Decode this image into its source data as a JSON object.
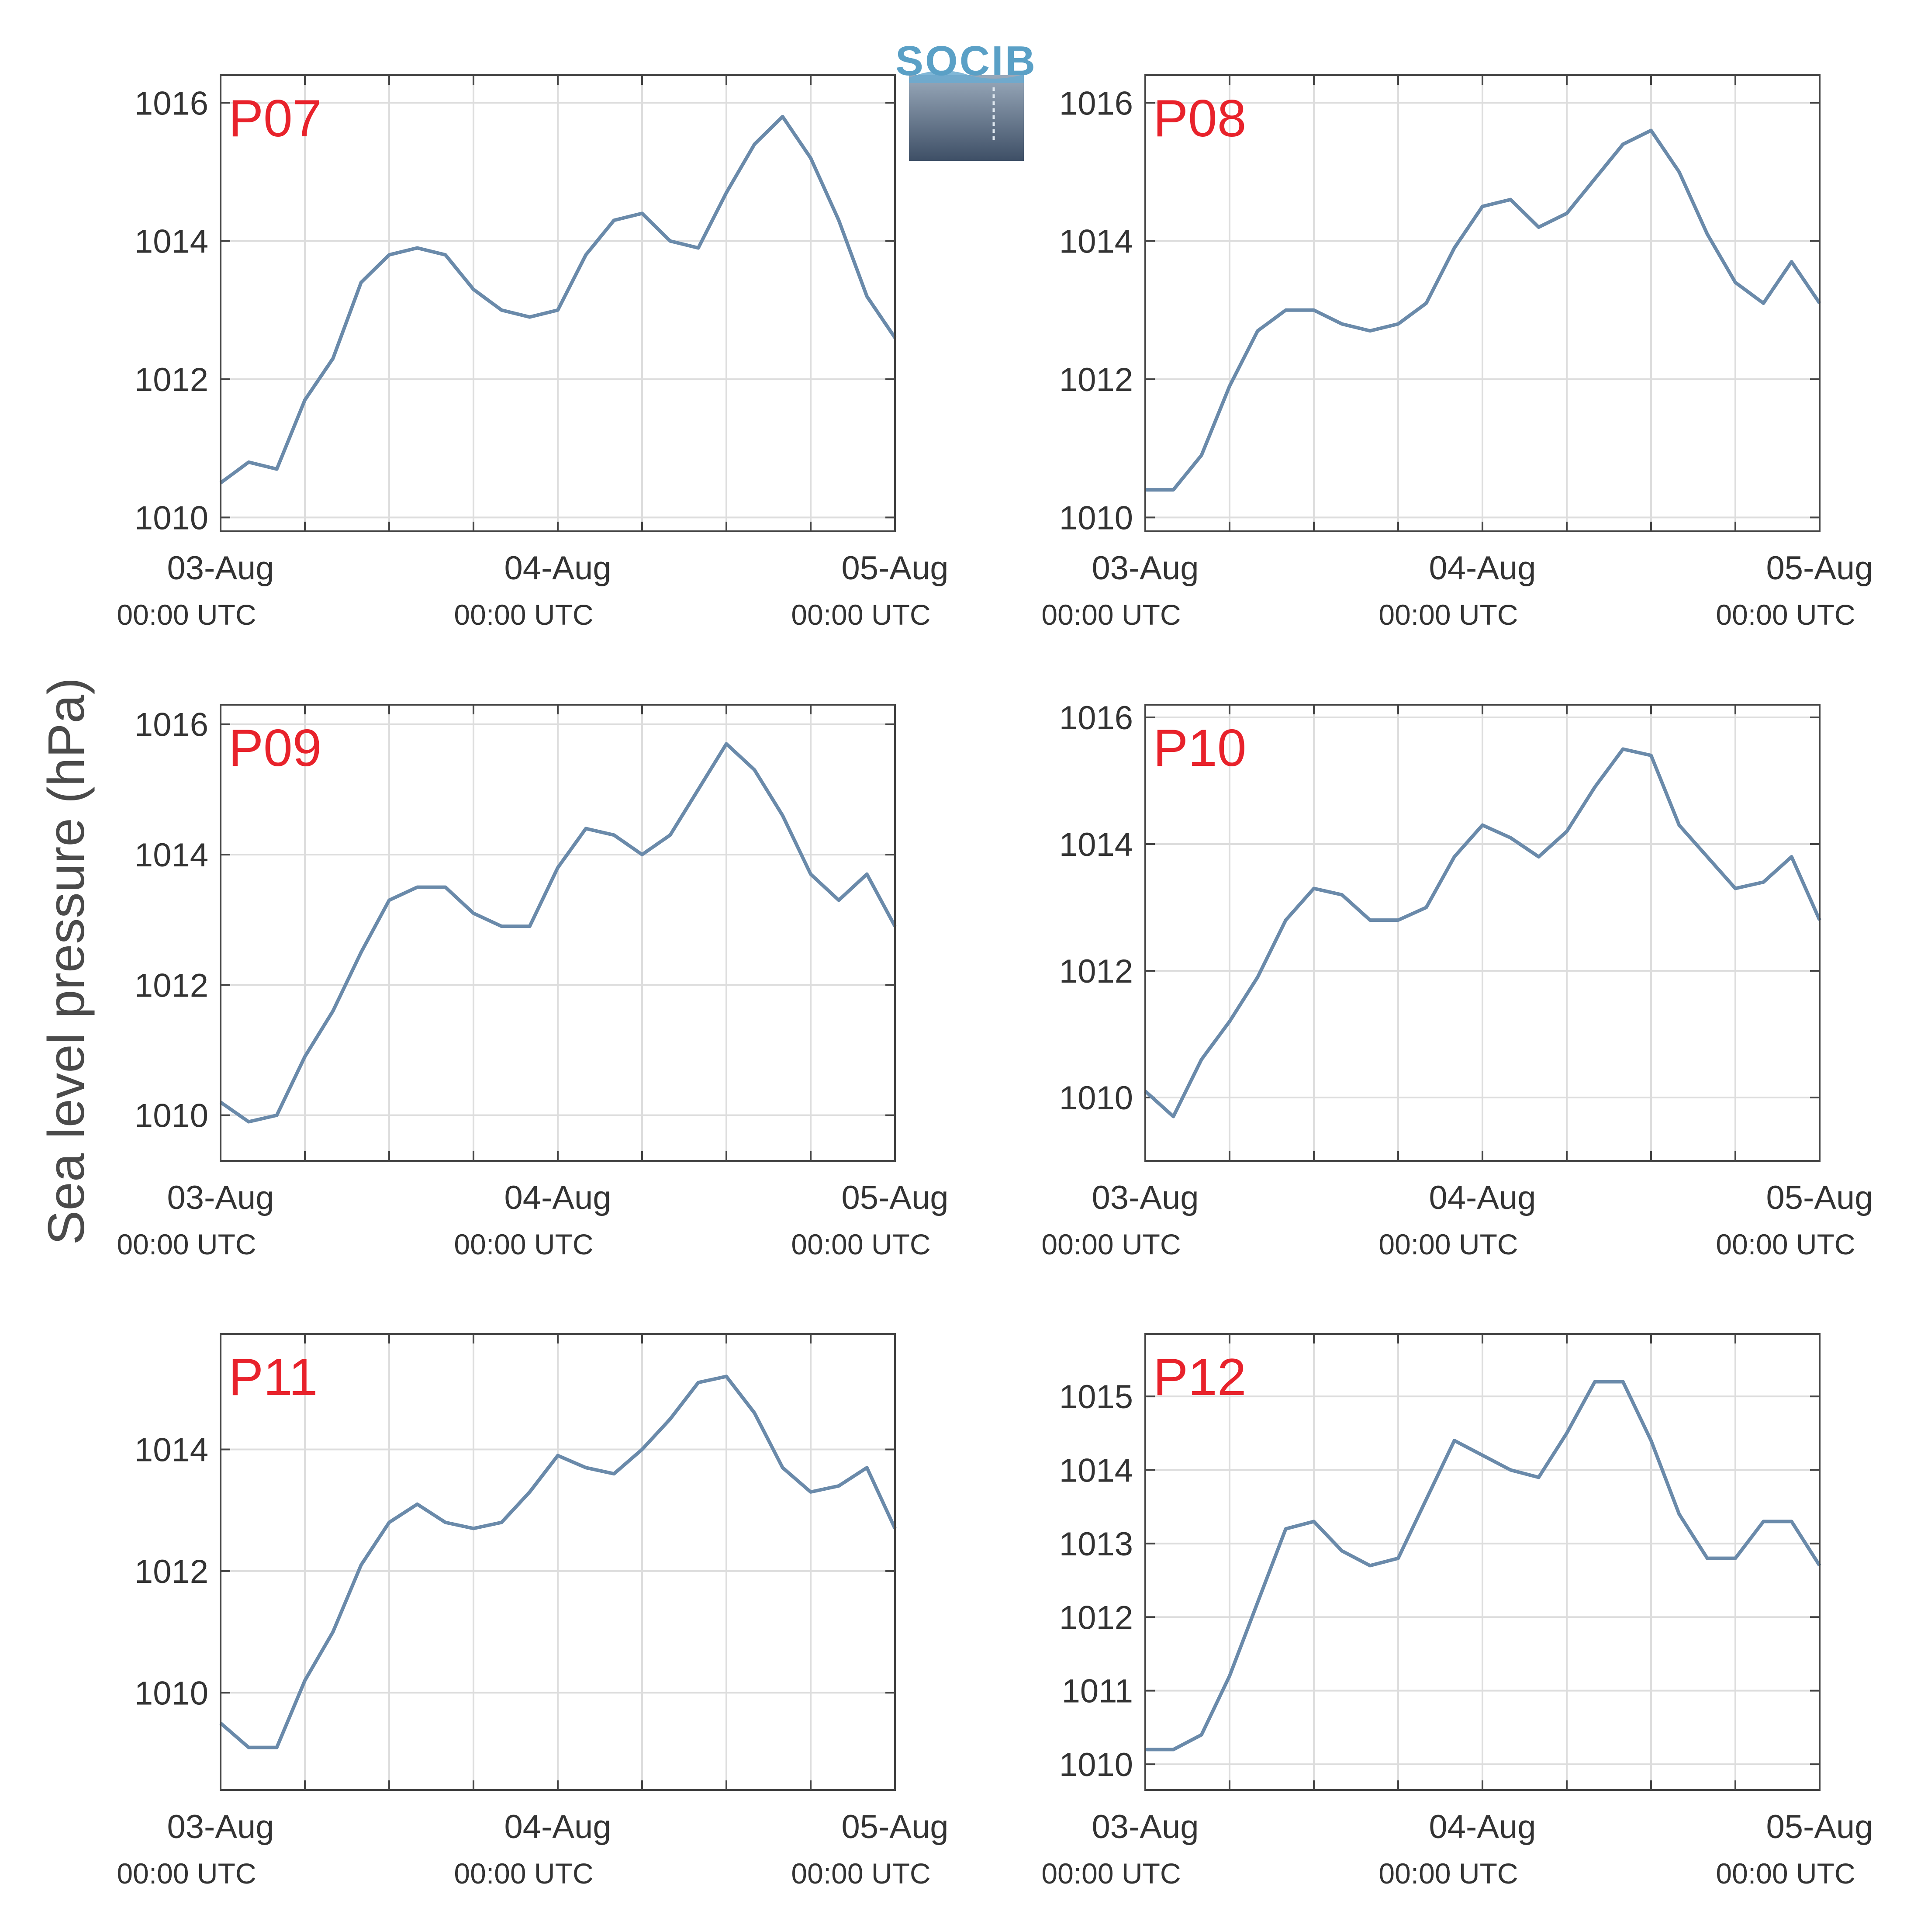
{
  "ylabel": "Sea level pressure (hPa)",
  "logo_text": "SOCIB",
  "colors": {
    "line": "#6a8aaa",
    "panel_label": "#e8222b",
    "grid": "#dddddd",
    "axis": "#444444"
  },
  "x_ticks": [
    {
      "main": "03-Aug",
      "sub": "00:00 UTC"
    },
    {
      "main": "04-Aug",
      "sub": "00:00 UTC"
    },
    {
      "main": "05-Aug",
      "sub": "00:00 UTC"
    }
  ],
  "chart_data": [
    {
      "type": "line",
      "panel_label": "P07",
      "ylim": [
        1009.8,
        1016.4
      ],
      "yticks": [
        1010,
        1012,
        1014,
        1016
      ],
      "xlim": [
        "2024-08-03T00:00",
        "2024-08-05T00:00"
      ],
      "grid": true,
      "series": [
        {
          "x": [
            "2024-08-03T00:00",
            "2024-08-03T02:00",
            "2024-08-03T04:00",
            "2024-08-03T06:00",
            "2024-08-03T08:00",
            "2024-08-03T10:00",
            "2024-08-03T12:00",
            "2024-08-03T14:00",
            "2024-08-03T16:00",
            "2024-08-03T18:00",
            "2024-08-03T20:00",
            "2024-08-03T22:00",
            "2024-08-04T00:00",
            "2024-08-04T02:00",
            "2024-08-04T04:00",
            "2024-08-04T06:00",
            "2024-08-04T08:00",
            "2024-08-04T10:00",
            "2024-08-04T12:00",
            "2024-08-04T14:00",
            "2024-08-04T16:00",
            "2024-08-04T18:00",
            "2024-08-04T20:00",
            "2024-08-04T22:00",
            "2024-08-05T00:00"
          ],
          "y": [
            1010.5,
            1010.8,
            1010.7,
            1011.7,
            1012.3,
            1013.4,
            1013.8,
            1013.9,
            1013.8,
            1013.3,
            1013.0,
            1012.9,
            1013.0,
            1013.8,
            1014.3,
            1014.4,
            1014.0,
            1013.9,
            1014.7,
            1015.4,
            1015.8,
            1015.2,
            1014.3,
            1013.2,
            1012.6
          ]
        }
      ]
    },
    {
      "type": "line",
      "panel_label": "P08",
      "ylim": [
        1009.8,
        1016.4
      ],
      "yticks": [
        1010,
        1012,
        1014,
        1016
      ],
      "xlim": [
        "2024-08-03T00:00",
        "2024-08-05T00:00"
      ],
      "grid": true,
      "series": [
        {
          "x": [
            "2024-08-03T00:00",
            "2024-08-03T02:00",
            "2024-08-03T04:00",
            "2024-08-03T06:00",
            "2024-08-03T08:00",
            "2024-08-03T10:00",
            "2024-08-03T12:00",
            "2024-08-03T14:00",
            "2024-08-03T16:00",
            "2024-08-03T18:00",
            "2024-08-03T20:00",
            "2024-08-03T22:00",
            "2024-08-04T00:00",
            "2024-08-04T02:00",
            "2024-08-04T04:00",
            "2024-08-04T06:00",
            "2024-08-04T08:00",
            "2024-08-04T10:00",
            "2024-08-04T12:00",
            "2024-08-04T14:00",
            "2024-08-04T16:00",
            "2024-08-04T18:00",
            "2024-08-04T20:00",
            "2024-08-04T22:00",
            "2024-08-05T00:00"
          ],
          "y": [
            1010.4,
            1010.4,
            1010.9,
            1011.9,
            1012.7,
            1013.0,
            1013.0,
            1012.8,
            1012.7,
            1012.8,
            1013.1,
            1013.9,
            1014.5,
            1014.6,
            1014.2,
            1014.4,
            1014.9,
            1015.4,
            1015.6,
            1015.0,
            1014.1,
            1013.4,
            1013.1,
            1013.7,
            1013.1
          ]
        }
      ]
    },
    {
      "type": "line",
      "panel_label": "P09",
      "ylim": [
        1009.3,
        1016.3
      ],
      "yticks": [
        1010,
        1012,
        1014,
        1016
      ],
      "xlim": [
        "2024-08-03T00:00",
        "2024-08-05T00:00"
      ],
      "grid": true,
      "series": [
        {
          "x": [
            "2024-08-03T00:00",
            "2024-08-03T02:00",
            "2024-08-03T04:00",
            "2024-08-03T06:00",
            "2024-08-03T08:00",
            "2024-08-03T10:00",
            "2024-08-03T12:00",
            "2024-08-03T14:00",
            "2024-08-03T16:00",
            "2024-08-03T18:00",
            "2024-08-03T20:00",
            "2024-08-03T22:00",
            "2024-08-04T00:00",
            "2024-08-04T02:00",
            "2024-08-04T04:00",
            "2024-08-04T06:00",
            "2024-08-04T08:00",
            "2024-08-04T10:00",
            "2024-08-04T12:00",
            "2024-08-04T14:00",
            "2024-08-04T16:00",
            "2024-08-04T18:00",
            "2024-08-04T20:00",
            "2024-08-04T22:00",
            "2024-08-05T00:00"
          ],
          "y": [
            1010.2,
            1009.9,
            1010.0,
            1010.9,
            1011.6,
            1012.5,
            1013.3,
            1013.5,
            1013.5,
            1013.1,
            1012.9,
            1012.9,
            1013.8,
            1014.4,
            1014.3,
            1014.0,
            1014.3,
            1015.0,
            1015.7,
            1015.3,
            1014.6,
            1013.7,
            1013.3,
            1013.7,
            1012.9
          ]
        }
      ]
    },
    {
      "type": "line",
      "panel_label": "P10",
      "ylim": [
        1009.0,
        1016.2
      ],
      "yticks": [
        1010,
        1012,
        1014,
        1016
      ],
      "xlim": [
        "2024-08-03T00:00",
        "2024-08-05T00:00"
      ],
      "grid": true,
      "series": [
        {
          "x": [
            "2024-08-03T00:00",
            "2024-08-03T02:00",
            "2024-08-03T04:00",
            "2024-08-03T06:00",
            "2024-08-03T08:00",
            "2024-08-03T10:00",
            "2024-08-03T12:00",
            "2024-08-03T14:00",
            "2024-08-03T16:00",
            "2024-08-03T18:00",
            "2024-08-03T20:00",
            "2024-08-03T22:00",
            "2024-08-04T00:00",
            "2024-08-04T02:00",
            "2024-08-04T04:00",
            "2024-08-04T06:00",
            "2024-08-04T08:00",
            "2024-08-04T10:00",
            "2024-08-04T12:00",
            "2024-08-04T14:00",
            "2024-08-04T16:00",
            "2024-08-04T18:00",
            "2024-08-04T20:00",
            "2024-08-04T22:00",
            "2024-08-05T00:00"
          ],
          "y": [
            1010.1,
            1009.7,
            1010.6,
            1011.2,
            1011.9,
            1012.8,
            1013.3,
            1013.2,
            1012.8,
            1012.8,
            1013.0,
            1013.8,
            1014.3,
            1014.1,
            1013.8,
            1014.2,
            1014.9,
            1015.5,
            1015.4,
            1014.3,
            1013.8,
            1013.3,
            1013.4,
            1013.8,
            1012.8
          ]
        }
      ]
    },
    {
      "type": "line",
      "panel_label": "P11",
      "ylim": [
        1008.4,
        1015.9
      ],
      "yticks": [
        1010,
        1012,
        1014
      ],
      "xlim": [
        "2024-08-03T00:00",
        "2024-08-05T00:00"
      ],
      "grid": true,
      "series": [
        {
          "x": [
            "2024-08-03T00:00",
            "2024-08-03T02:00",
            "2024-08-03T04:00",
            "2024-08-03T06:00",
            "2024-08-03T08:00",
            "2024-08-03T10:00",
            "2024-08-03T12:00",
            "2024-08-03T14:00",
            "2024-08-03T16:00",
            "2024-08-03T18:00",
            "2024-08-03T20:00",
            "2024-08-03T22:00",
            "2024-08-04T00:00",
            "2024-08-04T02:00",
            "2024-08-04T04:00",
            "2024-08-04T06:00",
            "2024-08-04T08:00",
            "2024-08-04T10:00",
            "2024-08-04T12:00",
            "2024-08-04T14:00",
            "2024-08-04T16:00",
            "2024-08-04T18:00",
            "2024-08-04T20:00",
            "2024-08-04T22:00",
            "2024-08-05T00:00"
          ],
          "y": [
            1009.5,
            1009.1,
            1009.1,
            1010.2,
            1011.0,
            1012.1,
            1012.8,
            1013.1,
            1012.8,
            1012.7,
            1012.8,
            1013.3,
            1013.9,
            1013.7,
            1013.6,
            1014.0,
            1014.5,
            1015.1,
            1015.2,
            1014.6,
            1013.7,
            1013.3,
            1013.4,
            1013.7,
            1012.7
          ]
        }
      ]
    },
    {
      "type": "line",
      "panel_label": "P12",
      "ylim": [
        1009.65,
        1015.85
      ],
      "yticks": [
        1010,
        1011,
        1012,
        1013,
        1014,
        1015
      ],
      "xlim": [
        "2024-08-03T00:00",
        "2024-08-05T00:00"
      ],
      "grid": true,
      "series": [
        {
          "x": [
            "2024-08-03T00:00",
            "2024-08-03T02:00",
            "2024-08-03T04:00",
            "2024-08-03T06:00",
            "2024-08-03T08:00",
            "2024-08-03T10:00",
            "2024-08-03T12:00",
            "2024-08-03T14:00",
            "2024-08-03T16:00",
            "2024-08-03T18:00",
            "2024-08-03T20:00",
            "2024-08-03T22:00",
            "2024-08-04T00:00",
            "2024-08-04T02:00",
            "2024-08-04T04:00",
            "2024-08-04T06:00",
            "2024-08-04T08:00",
            "2024-08-04T10:00",
            "2024-08-04T12:00",
            "2024-08-04T14:00",
            "2024-08-04T16:00",
            "2024-08-04T18:00",
            "2024-08-04T20:00",
            "2024-08-04T22:00",
            "2024-08-05T00:00"
          ],
          "y": [
            1010.2,
            1010.2,
            1010.4,
            1011.2,
            1012.2,
            1013.2,
            1013.3,
            1012.9,
            1012.7,
            1012.8,
            1013.6,
            1014.4,
            1014.2,
            1014.0,
            1013.9,
            1014.5,
            1015.2,
            1015.2,
            1014.4,
            1013.4,
            1012.8,
            1012.8,
            1013.3,
            1013.3,
            1012.7
          ]
        }
      ]
    }
  ]
}
